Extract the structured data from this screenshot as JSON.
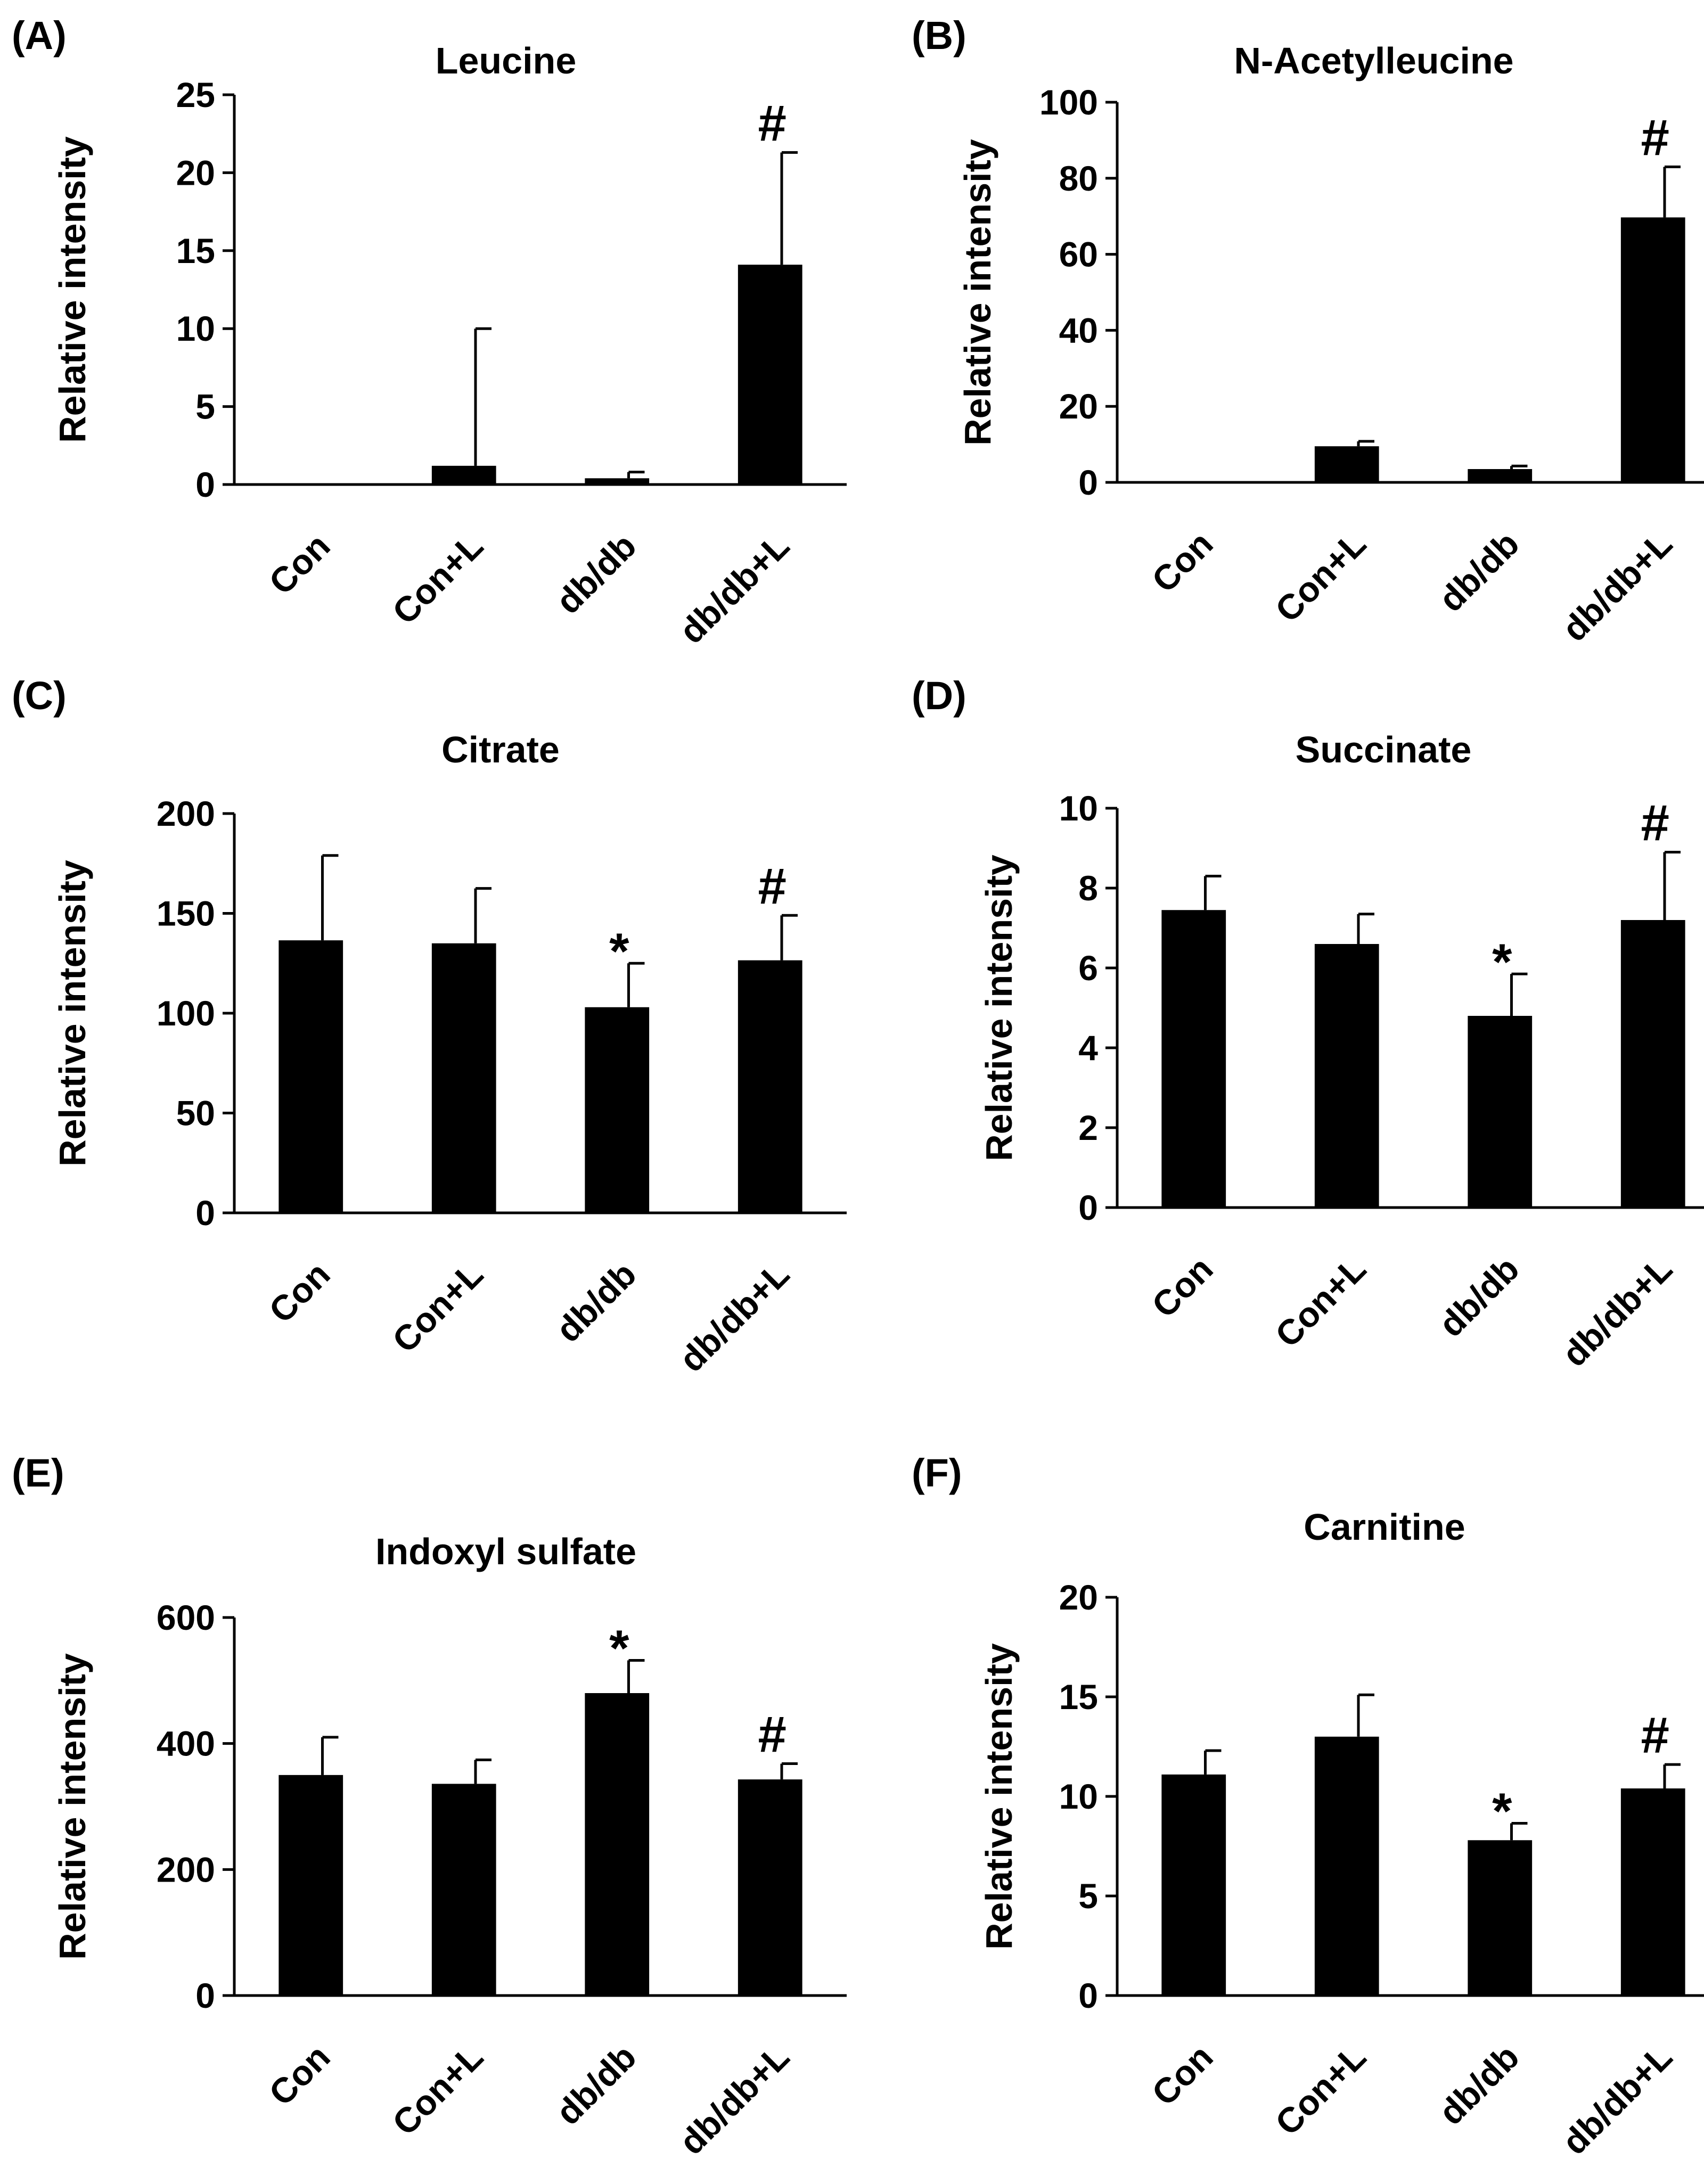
{
  "colors": {
    "bar": "#000000",
    "axis": "#000000",
    "background": "#ffffff"
  },
  "chart_data": [
    {
      "panel_label": "(A)",
      "type": "bar",
      "title": "Leucine",
      "ylabel": "Relative intensity",
      "categories": [
        "Con",
        "Con+L",
        "db/db",
        "db/db+L"
      ],
      "values": [
        0,
        1.2,
        0.4,
        14.1
      ],
      "errors": [
        0,
        8.8,
        0.4,
        7.2
      ],
      "annotations": [
        "",
        "",
        "",
        "#"
      ],
      "ylim": [
        0,
        25
      ],
      "yticks": [
        0,
        5,
        10,
        15,
        20,
        25
      ],
      "grid": false
    },
    {
      "panel_label": "(B)",
      "type": "bar",
      "title": "N-Acetylleucine",
      "ylabel": "Relative  intensity",
      "categories": [
        "Con",
        "Con+L",
        "db/db",
        "db/db+L"
      ],
      "values": [
        0.3,
        9.5,
        3.5,
        69.7
      ],
      "errors": [
        0,
        1.3,
        0.8,
        13.3
      ],
      "annotations": [
        "",
        "",
        "",
        "#"
      ],
      "ylim": [
        0,
        100
      ],
      "yticks": [
        0,
        20,
        40,
        60,
        80,
        100
      ],
      "grid": false
    },
    {
      "panel_label": "(C)",
      "type": "bar",
      "title": "Citrate",
      "ylabel": "Relative intensity",
      "categories": [
        "Con",
        "Con+L",
        "db/db",
        "db/db+L"
      ],
      "values": [
        136.5,
        135,
        103,
        126.5
      ],
      "errors": [
        42.5,
        27.5,
        22,
        22.5
      ],
      "annotations": [
        "",
        "",
        "*",
        "#"
      ],
      "ylim": [
        0,
        200
      ],
      "yticks": [
        0,
        50,
        100,
        150,
        200
      ],
      "grid": false
    },
    {
      "panel_label": "(D)",
      "type": "bar",
      "title": "Succinate",
      "ylabel": "Relative intensity",
      "categories": [
        "Con",
        "Con+L",
        "db/db",
        "db/db+L"
      ],
      "values": [
        7.45,
        6.6,
        4.8,
        7.2
      ],
      "errors": [
        0.85,
        0.75,
        1.05,
        1.7
      ],
      "annotations": [
        "",
        "",
        "*",
        "#"
      ],
      "ylim": [
        0,
        10
      ],
      "yticks": [
        0,
        2,
        4,
        6,
        8,
        10
      ],
      "grid": false
    },
    {
      "panel_label": "(E)",
      "type": "bar",
      "title": "Indoxyl sulfate",
      "ylabel": "Relative intensity",
      "categories": [
        "Con",
        "Con+L",
        "db/db",
        "db/db+L"
      ],
      "values": [
        350,
        336,
        480,
        343
      ],
      "errors": [
        60,
        38,
        52,
        25
      ],
      "annotations": [
        "",
        "",
        "*",
        "#"
      ],
      "ylim": [
        0,
        600
      ],
      "yticks": [
        0,
        200,
        400,
        600
      ],
      "grid": false
    },
    {
      "panel_label": "(F)",
      "type": "bar",
      "title": "Carnitine",
      "ylabel": "Relative intensity",
      "categories": [
        "Con",
        "Con+L",
        "db/db",
        "db/db+L"
      ],
      "values": [
        11.1,
        13,
        7.8,
        10.4
      ],
      "errors": [
        1.2,
        2.1,
        0.85,
        1.2
      ],
      "annotations": [
        "",
        "",
        "*",
        "#"
      ],
      "ylim": [
        0,
        20
      ],
      "yticks": [
        0,
        5,
        10,
        15,
        20
      ],
      "grid": false
    }
  ]
}
